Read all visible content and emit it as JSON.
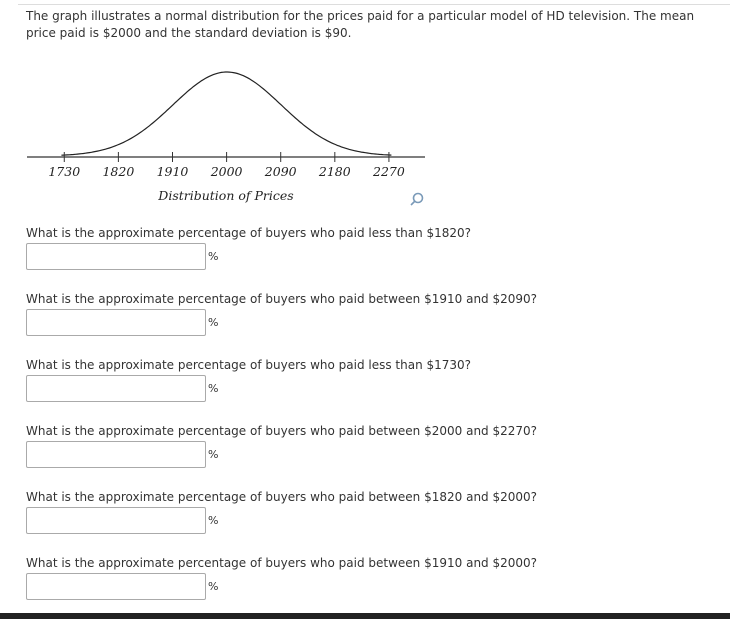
{
  "intro": "The graph illustrates a normal distribution for the prices paid for a particular model of HD television. The mean price paid is $2000 and the standard deviation is $90.",
  "chart_data": {
    "type": "normal-curve",
    "xlabel": "Distribution of Prices",
    "xlim": [
      1668,
      2330
    ],
    "xticks": [
      1730,
      1820,
      1910,
      2000,
      2090,
      2180,
      2270
    ]
  },
  "questions": [
    {
      "text": "What is the approximate percentage of buyers who paid less than $1820?",
      "unit": "%"
    },
    {
      "text": "What is the approximate percentage of buyers who paid between $1910 and $2090?",
      "unit": "%"
    },
    {
      "text": "What is the approximate percentage of buyers who paid less than $1730?",
      "unit": "%"
    },
    {
      "text": "What is the approximate percentage of buyers who paid between $2000 and $2270?",
      "unit": "%"
    },
    {
      "text": "What is the approximate percentage of buyers who paid between $1820 and $2000?",
      "unit": "%"
    },
    {
      "text": "What is the approximate percentage of buyers who paid between $1910 and $2000?",
      "unit": "%"
    }
  ]
}
